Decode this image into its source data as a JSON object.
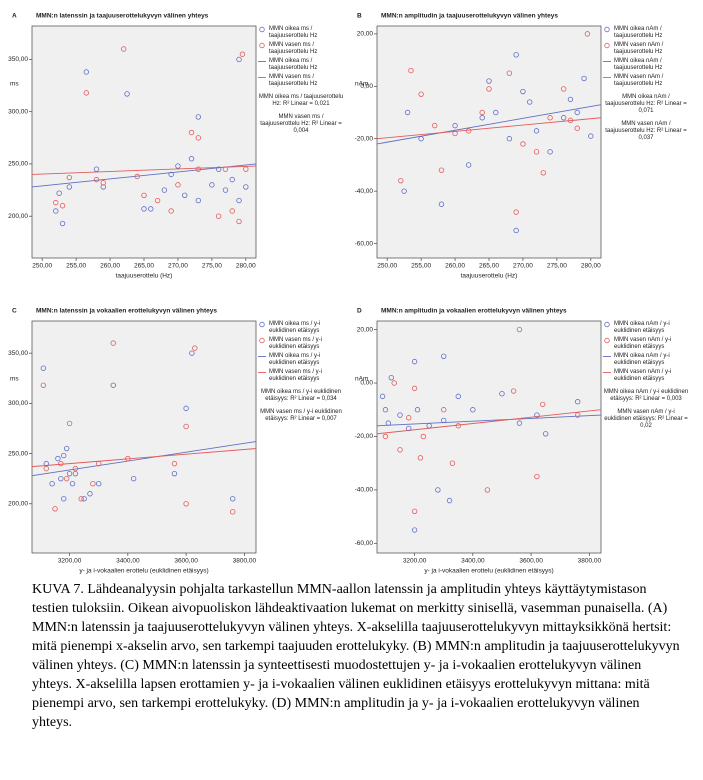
{
  "chart_data": [
    {
      "type": "scatter",
      "panel_label": "A",
      "title": "MMN:n latenssin ja taajuuserottelukyvyn välinen yhteys",
      "xlabel": "taajuuserottelu (Hz)",
      "ylabel": "ms",
      "xlim": [
        248.5,
        281.5
      ],
      "ylim": [
        160,
        382
      ],
      "xticks": [
        {
          "value": 250,
          "label": "250,00"
        },
        {
          "value": 255,
          "label": "255,00"
        },
        {
          "value": 260,
          "label": "260,00"
        },
        {
          "value": 265,
          "label": "265,00"
        },
        {
          "value": 270,
          "label": "270,00"
        },
        {
          "value": 275,
          "label": "275,00"
        },
        {
          "value": 280,
          "label": "280,00"
        }
      ],
      "yticks": [
        {
          "value": 200,
          "label": "200,00"
        },
        {
          "value": 250,
          "label": "250,00"
        },
        {
          "value": 300,
          "label": "300,00"
        },
        {
          "value": 350,
          "label": "350,00"
        }
      ],
      "series": [
        {
          "name": "MMN oikea ms / taajuuserottelu Hz",
          "color": "#5f6fc4",
          "x": [
            252,
            252.5,
            253,
            254,
            256.5,
            258,
            259,
            262.5,
            265,
            266,
            268,
            269,
            270,
            271,
            272,
            273,
            273,
            275,
            276,
            277,
            278,
            279,
            280,
            279
          ],
          "values": [
            205,
            222,
            193,
            228,
            338,
            245,
            228,
            317,
            207,
            207,
            225,
            240,
            248,
            220,
            255,
            295,
            215,
            230,
            245,
            225,
            235,
            350,
            228,
            215
          ]
        },
        {
          "name": "MMN vasen ms / taajuuserottelu Hz",
          "color": "#e25c5c",
          "x": [
            252,
            253,
            254,
            256.5,
            258,
            259,
            262,
            264,
            265,
            267,
            269,
            270,
            272,
            273,
            273,
            276,
            277,
            279,
            279.5,
            280,
            278
          ],
          "values": [
            213,
            210,
            237,
            318,
            235,
            232,
            360,
            238,
            220,
            215,
            205,
            230,
            280,
            245,
            275,
            200,
            245,
            195,
            355,
            245,
            205
          ]
        }
      ],
      "fit_lines": [
        {
          "name": "MMN oikea ms / taajuuserottelu Hz",
          "color": "#5f6fc4",
          "x": [
            248.5,
            281.5
          ],
          "values": [
            228,
            250
          ]
        },
        {
          "name": "MMN vasen ms / taajuuserottelu Hz",
          "color": "#e25c5c",
          "x": [
            248.5,
            281.5
          ],
          "values": [
            240,
            248
          ]
        }
      ],
      "r2_labels": [
        "MMN oikea ms / taajuuserottelu Hz: R² Linear = 0,021",
        "MMN vasen ms / taajuuserottelu Hz: R² Linear = 0,004"
      ]
    },
    {
      "type": "scatter",
      "panel_label": "B",
      "title": "MMN:n amplitudin ja taajuuserottelukyvyn välinen yhteys",
      "xlabel": "taajuuserottelu (Hz)",
      "ylabel": "nAm",
      "xlim": [
        248.5,
        281.5
      ],
      "ylim": [
        -65.5,
        23
      ],
      "xticks": [
        {
          "value": 250,
          "label": "250,00"
        },
        {
          "value": 255,
          "label": "255,00"
        },
        {
          "value": 260,
          "label": "260,00"
        },
        {
          "value": 265,
          "label": "265,00"
        },
        {
          "value": 270,
          "label": "270,00"
        },
        {
          "value": 275,
          "label": "275,00"
        },
        {
          "value": 280,
          "label": "280,00"
        }
      ],
      "yticks": [
        {
          "value": 20,
          "label": "20,00"
        },
        {
          "value": 0,
          "label": "0,00"
        },
        {
          "value": -20,
          "label": "-20,00"
        },
        {
          "value": -40,
          "label": "-40,00"
        },
        {
          "value": -60,
          "label": "-60,00"
        }
      ],
      "series": [
        {
          "name": "MMN oikea nAm / taajuuserottelu Hz",
          "color": "#5f6fc4",
          "x": [
            252.5,
            253,
            255,
            258,
            260,
            262,
            264,
            265,
            266,
            268,
            269,
            270,
            271,
            272,
            274,
            276,
            277,
            278,
            279,
            280,
            269
          ],
          "values": [
            -40,
            -10,
            -20,
            -45,
            -15,
            -30,
            -12,
            2,
            -10,
            -20,
            12,
            -2,
            -6,
            -17,
            -25,
            -12,
            -5,
            -10,
            3,
            -19,
            -55
          ]
        },
        {
          "name": "MMN vasen nAm / taajuuserottelu Hz",
          "color": "#e25c5c",
          "x": [
            252,
            253.5,
            255,
            257,
            258,
            260,
            262,
            264,
            265,
            268,
            269,
            270,
            272,
            273,
            274,
            276,
            278,
            279.5,
            277
          ],
          "values": [
            -36,
            6,
            -3,
            -15,
            -32,
            -18,
            -17,
            -10,
            -1,
            5,
            -48,
            -22,
            -25,
            -33,
            -12,
            -1,
            -16,
            20,
            -13
          ]
        }
      ],
      "fit_lines": [
        {
          "name": "MMN oikea nAm / taajuuserottelu Hz",
          "color": "#5f6fc4",
          "x": [
            248.5,
            281.5
          ],
          "values": [
            -22,
            -7
          ]
        },
        {
          "name": "MMN vasen nAm / taajuuserottelu Hz",
          "color": "#e25c5c",
          "x": [
            248.5,
            281.5
          ],
          "values": [
            -20,
            -12
          ]
        }
      ],
      "r2_labels": [
        "MMN oikea nAm / taajuuserottelu Hz: R² Linear = 0,071",
        "MMN vasen nAm / taajuuserottelu Hz: R² Linear = 0,037"
      ]
    },
    {
      "type": "scatter",
      "panel_label": "C",
      "title": "MMN:n latenssin ja vokaalien erottelukyvyn välinen yhteys",
      "xlabel": "y- ja i-vokaalien erottelu (euklidinen etäisyys)",
      "ylabel": "ms",
      "xlim": [
        3071,
        3840
      ],
      "ylim": [
        151,
        382
      ],
      "xticks": [
        {
          "value": 3200,
          "label": "3200,00"
        },
        {
          "value": 3400,
          "label": "3400,00"
        },
        {
          "value": 3600,
          "label": "3600,00"
        },
        {
          "value": 3800,
          "label": "3800,00"
        }
      ],
      "yticks": [
        {
          "value": 200,
          "label": "200,00"
        },
        {
          "value": 250,
          "label": "250,00"
        },
        {
          "value": 300,
          "label": "300,00"
        },
        {
          "value": 350,
          "label": "350,00"
        }
      ],
      "series": [
        {
          "name": "MMN oikea ms / y-i euklidinen etäisyys",
          "color": "#5f6fc4",
          "x": [
            3110,
            3120,
            3140,
            3160,
            3170,
            3180,
            3190,
            3200,
            3210,
            3220,
            3250,
            3270,
            3300,
            3350,
            3420,
            3560,
            3600,
            3620,
            3760,
            3180
          ],
          "values": [
            335,
            240,
            220,
            245,
            225,
            248,
            255,
            230,
            220,
            230,
            205,
            210,
            220,
            318,
            225,
            230,
            295,
            350,
            205,
            205
          ]
        },
        {
          "name": "MMN vasen ms / y-i euklidinen etäisyys",
          "color": "#e25c5c",
          "x": [
            3110,
            3120,
            3150,
            3170,
            3190,
            3200,
            3220,
            3240,
            3280,
            3300,
            3350,
            3400,
            3560,
            3600,
            3630,
            3760,
            3600
          ],
          "values": [
            318,
            235,
            195,
            240,
            225,
            280,
            235,
            205,
            220,
            240,
            360,
            245,
            240,
            277,
            355,
            192,
            200
          ]
        }
      ],
      "fit_lines": [
        {
          "name": "MMN oikea ms / y-i euklidinen etäisyys",
          "color": "#5f6fc4",
          "x": [
            3071,
            3840
          ],
          "values": [
            228,
            262
          ]
        },
        {
          "name": "MMN vasen ms / y-i euklidinen etäisyys",
          "color": "#e25c5c",
          "x": [
            3071,
            3840
          ],
          "values": [
            237,
            255
          ]
        }
      ],
      "r2_labels": [
        "MMN oikea ms / y-i euklidinen etäisyys: R² Linear = 0,034",
        "MMN vasen ms / y-i euklidinen etäisyys: R² Linear = 0,007"
      ]
    },
    {
      "type": "scatter",
      "panel_label": "D",
      "title": "MMN:n amplitudin ja vokaalien erottelukyvyn välinen yhteys",
      "xlabel": "y- ja i-vokaalien erottelu (euklidinen etäisyys)",
      "ylabel": "nAm",
      "xlim": [
        3071,
        3840
      ],
      "ylim": [
        -63.6,
        23.2
      ],
      "xticks": [
        {
          "value": 3200,
          "label": "3200,00"
        },
        {
          "value": 3400,
          "label": "3400,00"
        },
        {
          "value": 3600,
          "label": "3600,00"
        },
        {
          "value": 3800,
          "label": "3800,00"
        }
      ],
      "yticks": [
        {
          "value": 20,
          "label": "20,00"
        },
        {
          "value": 0,
          "label": "0,00"
        },
        {
          "value": -20,
          "label": "-20,00"
        },
        {
          "value": -40,
          "label": "-40,00"
        },
        {
          "value": -60,
          "label": "-60,00"
        }
      ],
      "series": [
        {
          "name": "MMN oikea nAm / y-i euklidinen etäisyys",
          "color": "#5f6fc4",
          "x": [
            3090,
            3100,
            3110,
            3120,
            3150,
            3180,
            3200,
            3200,
            3210,
            3250,
            3280,
            3300,
            3320,
            3350,
            3400,
            3500,
            3560,
            3620,
            3650,
            3760,
            3300
          ],
          "values": [
            -5,
            -10,
            -15,
            2,
            -12,
            -17,
            8,
            -55,
            -10,
            -16,
            -40,
            -14,
            -44,
            -5,
            -10,
            -4,
            -15,
            -12,
            -19,
            -7,
            10
          ]
        },
        {
          "name": "MMN vasen nAm / y-i euklidinen etäisyys",
          "color": "#e25c5c",
          "x": [
            3100,
            3130,
            3150,
            3180,
            3200,
            3220,
            3230,
            3300,
            3330,
            3350,
            3450,
            3540,
            3560,
            3620,
            3640,
            3760,
            3200
          ],
          "values": [
            -20,
            0,
            -25,
            -13,
            -48,
            -28,
            -20,
            -10,
            -30,
            -16,
            -40,
            -3,
            20,
            -35,
            -8,
            -12,
            -2
          ]
        }
      ],
      "fit_lines": [
        {
          "name": "MMN oikea nAm / y-i euklidinen etäisyys",
          "color": "#5f6fc4",
          "x": [
            3071,
            3840
          ],
          "values": [
            -16,
            -12
          ]
        },
        {
          "name": "MMN vasen nAm / y-i euklidinen etäisyys",
          "color": "#e25c5c",
          "x": [
            3071,
            3840
          ],
          "values": [
            -19,
            -10
          ]
        }
      ],
      "r2_labels": [
        "MMN oikea nAm / y-i euklidinen etäisyys: R² Linear = 0,003",
        "MMN vasen nAm / y-i euklidinen etäisyys: R² Linear = 0,02"
      ]
    }
  ],
  "caption": "KUVA 7. Lähdeanalyysin pohjalta tarkastellun MMN-aallon latenssin ja amplitudin yhteys käyttäytymistason testien tuloksiin. Oikean aivopuoliskon lähdeaktivaation lukemat on merkitty sinisellä, vasemman punaisella.  (A) MMN:n latenssin ja taajuuserottelukyvyn välinen yhteys. X-akselilla taajuuserottelukyvyn mittayksikkönä hertsit: mitä pienempi x-akselin arvo, sen tarkempi taajuuden erottelukyky. (B) MMN:n amplitudin ja taajuuserottelukyvyn välinen yhteys. (C) MMN:n latenssin ja synteettisesti muodostettujen y- ja i-vokaalien erottelukyvyn välinen yhteys. X-akselilla lapsen erottamien y- ja i-vokaalien välinen euklidinen etäisyys erottelukyvyn mittana: mitä pienempi arvo, sen tarkempi erottelukyky. (D) MMN:n amplitudin ja y- ja i-vokaalien erottelukyvyn välinen yhteys."
}
